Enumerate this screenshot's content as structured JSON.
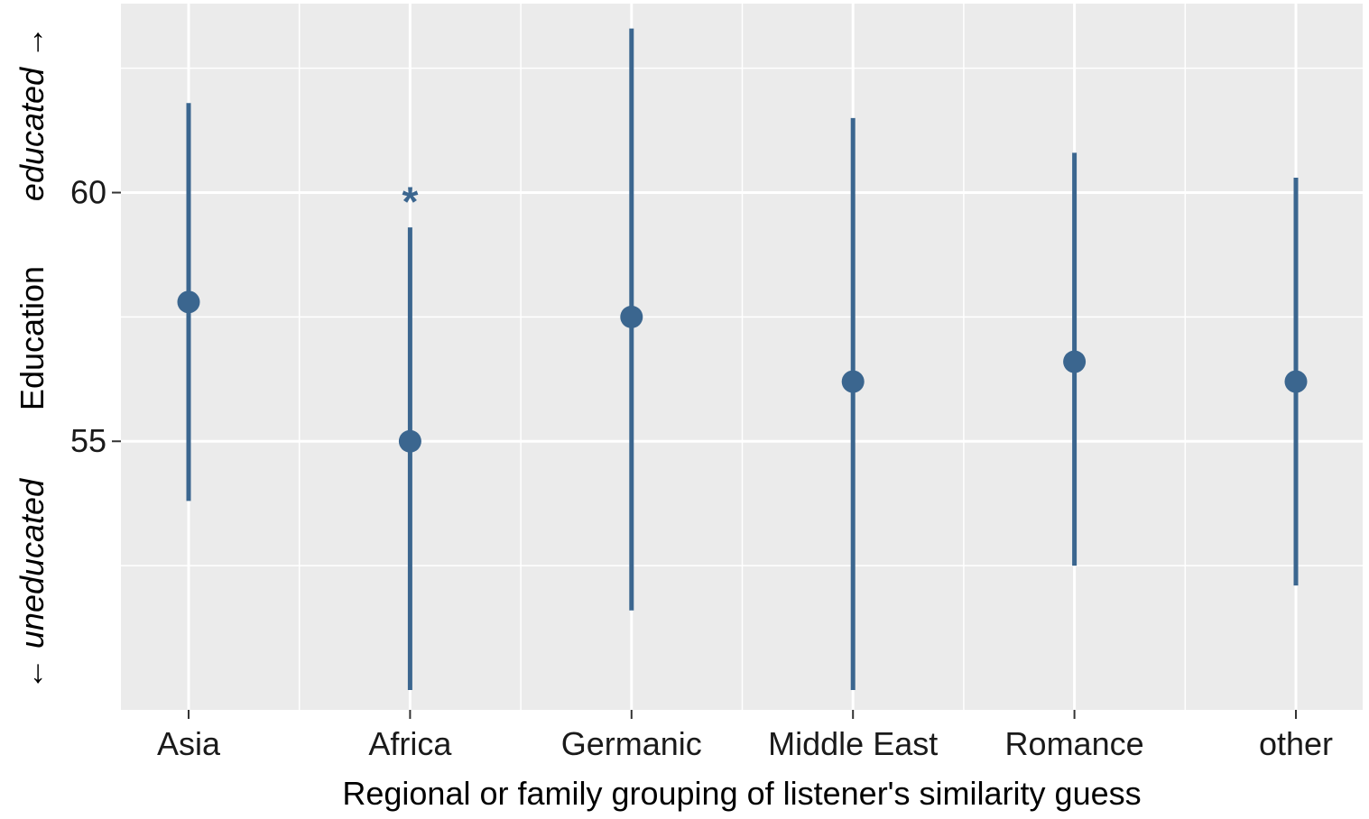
{
  "chart_data": {
    "type": "pointrange",
    "categories": [
      "Asia",
      "Africa",
      "Germanic",
      "Middle East",
      "Romance",
      "other"
    ],
    "series": [
      {
        "estimates": [
          57.8,
          55.0,
          57.5,
          56.2,
          56.6,
          56.2
        ],
        "lower": [
          53.8,
          50.0,
          51.6,
          50.0,
          52.5,
          52.1
        ],
        "upper": [
          61.8,
          59.3,
          63.3,
          61.5,
          60.8,
          60.3
        ]
      }
    ],
    "significance_markers": [
      {
        "category": "Africa",
        "label": "*",
        "y": 60.0
      }
    ],
    "ylim": [
      49.6,
      63.8
    ],
    "yticks": [
      55,
      60
    ],
    "ytick_labels": [
      "55",
      "60"
    ],
    "xlabel": "Regional or family grouping of listener's similarity guess",
    "ylabel": {
      "low": "← uneducated",
      "center": "Education",
      "high": "educated →"
    },
    "grid": true,
    "legend": "none",
    "colors": {
      "series": "#3b668f",
      "panel_background": "#ebebeb",
      "grid": "#ffffff",
      "text": "#1a1a1a"
    }
  }
}
